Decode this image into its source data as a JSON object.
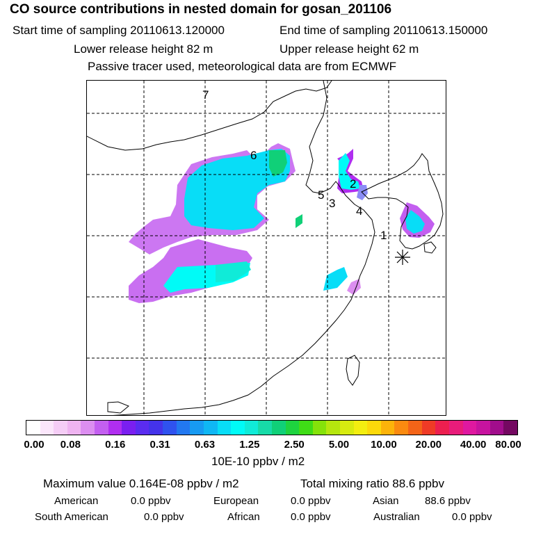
{
  "title": "CO  source contributions in nested domain for gosan_201106",
  "header": {
    "start_time": "Start time of sampling 20110613.120000",
    "end_time": "End time of sampling 20110613.150000",
    "lower_height": "Lower release height   82 m",
    "upper_height": "Upper release height   62 m",
    "tracer_note": "Passive tracer used, meteorological data are from ECMWF"
  },
  "map": {
    "site_labels": [
      "1",
      "2",
      "3",
      "4",
      "5",
      "6",
      "7"
    ],
    "receptor_marker": "asterisk-icon"
  },
  "chart_data": {
    "type": "heatmap",
    "colorbar": {
      "tick_labels": [
        "0.00",
        "0.08",
        "0.16",
        "0.31",
        "0.63",
        "1.25",
        "2.50",
        "5.00",
        "10.00",
        "20.00",
        "40.00",
        "80.00"
      ],
      "unit": "10E-10 ppbv / m2",
      "colors": [
        "#ffffff",
        "#fbe6fb",
        "#f5cdf6",
        "#efb4f1",
        "#dc8ef0",
        "#c35ff0",
        "#b02ef0",
        "#7a1ff0",
        "#5a2cf0",
        "#4433ea",
        "#2f52ef",
        "#2278f0",
        "#179af2",
        "#0fb7f4",
        "#08ddf7",
        "#00fbf7",
        "#10ebd8",
        "#17dba8",
        "#10d078",
        "#1ed33f",
        "#3fdc16",
        "#85e20a",
        "#b5e60e",
        "#d7eb10",
        "#f3ee10",
        "#fcd90a",
        "#fcb30a",
        "#fa8a10",
        "#f46418",
        "#ef3b26",
        "#ec1f4f",
        "#e81c7a",
        "#df18a0",
        "#c7139f",
        "#a10d8c",
        "#740861"
      ]
    },
    "maximum_value": "Maximum value  0.164E-08 ppbv / m2",
    "total_mixing_ratio": "Total mixing ratio       88.6 ppbv",
    "regional_contributions": [
      {
        "region": "American",
        "value": "0.0 ppbv"
      },
      {
        "region": "European",
        "value": "0.0 ppbv"
      },
      {
        "region": "Asian",
        "value": "88.6 ppbv"
      },
      {
        "region": "South American",
        "value": "0.0 ppbv"
      },
      {
        "region": "African",
        "value": "0.0 ppbv"
      },
      {
        "region": "Australian",
        "value": "0.0 ppbv"
      }
    ]
  }
}
